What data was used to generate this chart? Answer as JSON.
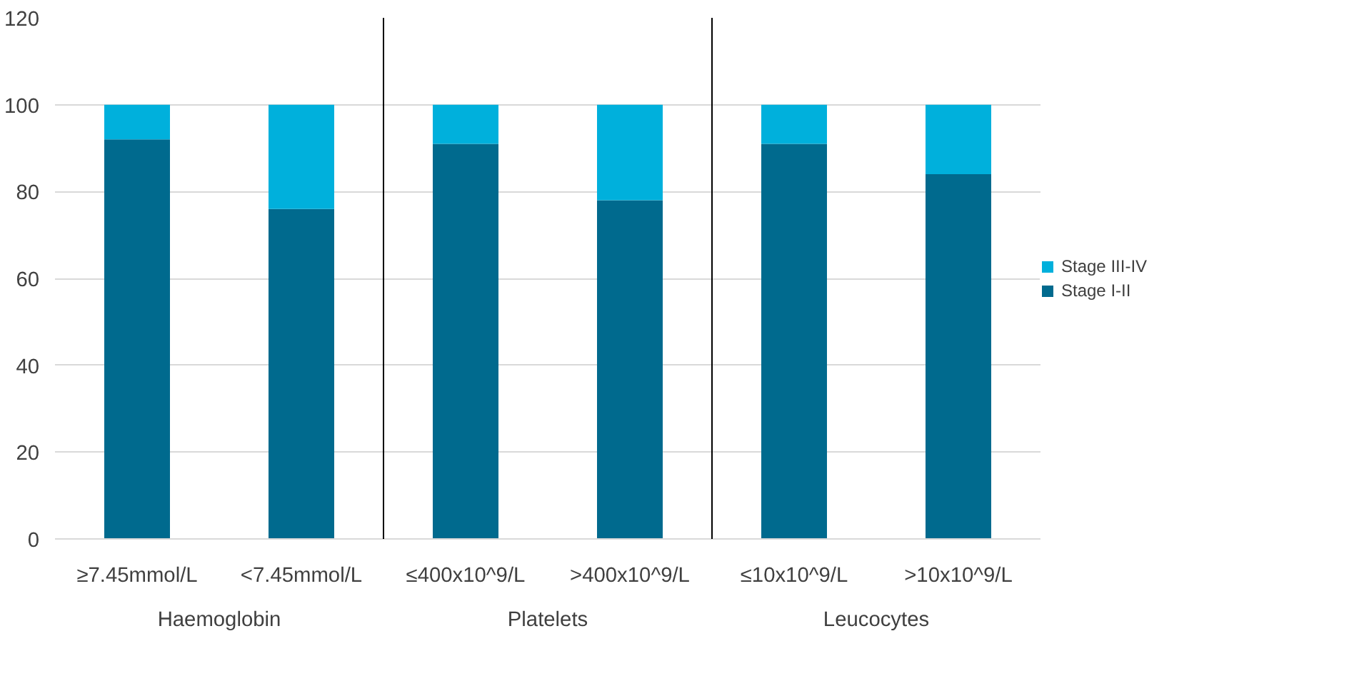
{
  "chart_data": {
    "type": "bar",
    "stacked": true,
    "categories": [
      "≥7.45mmol/L",
      "<7.45mmol/L",
      "≤400x10^9/L",
      ">400x10^9/L",
      "≤10x10^9/L",
      ">10x10^9/L"
    ],
    "series": [
      {
        "name": "Stage I-II",
        "color": "#006a8e",
        "values": [
          92,
          76,
          91,
          78,
          91,
          84
        ]
      },
      {
        "name": "Stage III-IV",
        "color": "#00b0dc",
        "values": [
          8,
          24,
          9,
          22,
          9,
          16
        ]
      }
    ],
    "annotations": [
      "Haemoglobin",
      "Platelets",
      "Leucocytes"
    ],
    "ylim": [
      0,
      120
    ],
    "yticks": [
      0,
      20,
      40,
      60,
      80,
      100,
      120
    ],
    "grid": "y",
    "legend": "right"
  }
}
